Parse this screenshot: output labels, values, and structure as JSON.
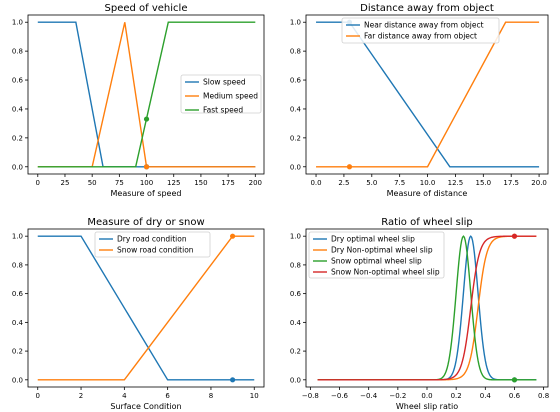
{
  "chart_data": [
    {
      "type": "line",
      "title": "Speed of vehicle",
      "xlabel": "Measure of speed",
      "ylabel": "",
      "xlim": [
        -9,
        208
      ],
      "ylim": [
        -0.05,
        1.05
      ],
      "xticks": [
        0,
        25,
        50,
        75,
        100,
        125,
        150,
        175,
        200
      ],
      "xtick_labels": [
        "0",
        "25",
        "50",
        "75",
        "100",
        "125",
        "150",
        "175",
        "200"
      ],
      "yticks": [
        0,
        0.2,
        0.4,
        0.6,
        0.8,
        1
      ],
      "ytick_labels": [
        "0.0",
        "0.2",
        "0.4",
        "0.6",
        "0.8",
        "1.0"
      ],
      "grid": false,
      "legend_position": "center-right",
      "series": [
        {
          "name": "Slow speed",
          "color": "#1f77b4",
          "x": [
            0,
            35,
            60,
            200
          ],
          "y": [
            1,
            1,
            0,
            0
          ]
        },
        {
          "name": "Medium speed",
          "color": "#ff7f0e",
          "x": [
            0,
            50,
            80,
            100,
            200
          ],
          "y": [
            0,
            0,
            1,
            0,
            0
          ]
        },
        {
          "name": "Fast speed",
          "color": "#2ca02c",
          "x": [
            0,
            90,
            120,
            200
          ],
          "y": [
            0,
            0,
            1,
            1
          ]
        }
      ],
      "points": [
        {
          "x": 100,
          "y": 0,
          "color": "#1f77b4"
        },
        {
          "x": 100,
          "y": 0,
          "color": "#ff7f0e"
        },
        {
          "x": 100,
          "y": 0.33,
          "color": "#2ca02c"
        }
      ]
    },
    {
      "type": "line",
      "title": "Distance away from object",
      "xlabel": "Measure of distance",
      "ylabel": "",
      "xlim": [
        -0.9,
        20.8
      ],
      "ylim": [
        -0.05,
        1.05
      ],
      "xticks": [
        0,
        2.5,
        5,
        7.5,
        10,
        12.5,
        15,
        17.5,
        20
      ],
      "xtick_labels": [
        "0.0",
        "2.5",
        "5.0",
        "7.5",
        "10.0",
        "12.5",
        "15.0",
        "17.5",
        "20.0"
      ],
      "yticks": [
        0,
        0.2,
        0.4,
        0.6,
        0.8,
        1
      ],
      "ytick_labels": [
        "0.0",
        "0.2",
        "0.4",
        "0.6",
        "0.8",
        "1.0"
      ],
      "grid": false,
      "legend_position": "top-right",
      "series": [
        {
          "name": "Near distance away from object",
          "color": "#1f77b4",
          "x": [
            0,
            3,
            12,
            20
          ],
          "y": [
            1,
            1,
            0,
            0
          ]
        },
        {
          "name": "Far distance away from object",
          "color": "#ff7f0e",
          "x": [
            0,
            10,
            17,
            20
          ],
          "y": [
            0,
            0,
            1,
            1
          ]
        }
      ],
      "points": [
        {
          "x": 3,
          "y": 1,
          "color": "#1f77b4"
        },
        {
          "x": 3,
          "y": 0,
          "color": "#ff7f0e"
        }
      ]
    },
    {
      "type": "line",
      "title": "Measure of dry or snow",
      "xlabel": "Surface Condition",
      "ylabel": "",
      "xlim": [
        -0.45,
        10.45
      ],
      "ylim": [
        -0.05,
        1.05
      ],
      "xticks": [
        0,
        2,
        4,
        6,
        8,
        10
      ],
      "xtick_labels": [
        "0",
        "2",
        "4",
        "6",
        "8",
        "10"
      ],
      "yticks": [
        0,
        0.2,
        0.4,
        0.6,
        0.8,
        1
      ],
      "ytick_labels": [
        "0.0",
        "0.2",
        "0.4",
        "0.6",
        "0.8",
        "1.0"
      ],
      "grid": false,
      "legend_position": "top-center",
      "series": [
        {
          "name": "Dry road condition",
          "color": "#1f77b4",
          "x": [
            0,
            2,
            6,
            10
          ],
          "y": [
            1,
            1,
            0,
            0
          ]
        },
        {
          "name": "Snow road condition",
          "color": "#ff7f0e",
          "x": [
            0,
            4,
            9,
            10
          ],
          "y": [
            0,
            0,
            1,
            1
          ]
        }
      ],
      "points": [
        {
          "x": 9,
          "y": 0,
          "color": "#1f77b4"
        },
        {
          "x": 9,
          "y": 1,
          "color": "#ff7f0e"
        }
      ]
    },
    {
      "type": "line",
      "title": "Ratio of wheel slip",
      "xlabel": "Wheel slip ratio",
      "ylabel": "",
      "xlim": [
        -0.83,
        0.83
      ],
      "ylim": [
        -0.05,
        1.05
      ],
      "xticks": [
        -0.8,
        -0.6,
        -0.4,
        -0.2,
        0,
        0.2,
        0.4,
        0.6,
        0.8
      ],
      "xtick_labels": [
        "−0.8",
        "−0.6",
        "−0.4",
        "−0.2",
        "0.0",
        "0.2",
        "0.4",
        "0.6",
        "0.8"
      ],
      "yticks": [
        0,
        0.2,
        0.4,
        0.6,
        0.8,
        1
      ],
      "ytick_labels": [
        "0.0",
        "0.2",
        "0.4",
        "0.6",
        "0.8",
        "1.0"
      ],
      "grid": false,
      "legend_position": "top-left",
      "x_range": [
        -0.75,
        0.75
      ],
      "series": [
        {
          "name": "Dry optimal wheel slip",
          "color": "#1f77b4",
          "shape": "gaussian",
          "center": 0.3,
          "width": 0.05
        },
        {
          "name": "Dry Non-optimal wheel slip",
          "color": "#ff7f0e",
          "shape": "sigmoid",
          "center": 0.35,
          "width": 0.03
        },
        {
          "name": "Snow optimal wheel slip",
          "color": "#2ca02c",
          "shape": "gaussian",
          "center": 0.25,
          "width": 0.05
        },
        {
          "name": "Snow Non-optimal wheel slip",
          "color": "#d62728",
          "shape": "sigmoid",
          "center": 0.3,
          "width": 0.03
        }
      ],
      "points": [
        {
          "x": 0.6,
          "y": 0,
          "color": "#1f77b4"
        },
        {
          "x": 0.6,
          "y": 1,
          "color": "#ff7f0e"
        },
        {
          "x": 0.6,
          "y": 0,
          "color": "#2ca02c"
        },
        {
          "x": 0.6,
          "y": 1,
          "color": "#d62728"
        }
      ]
    }
  ]
}
